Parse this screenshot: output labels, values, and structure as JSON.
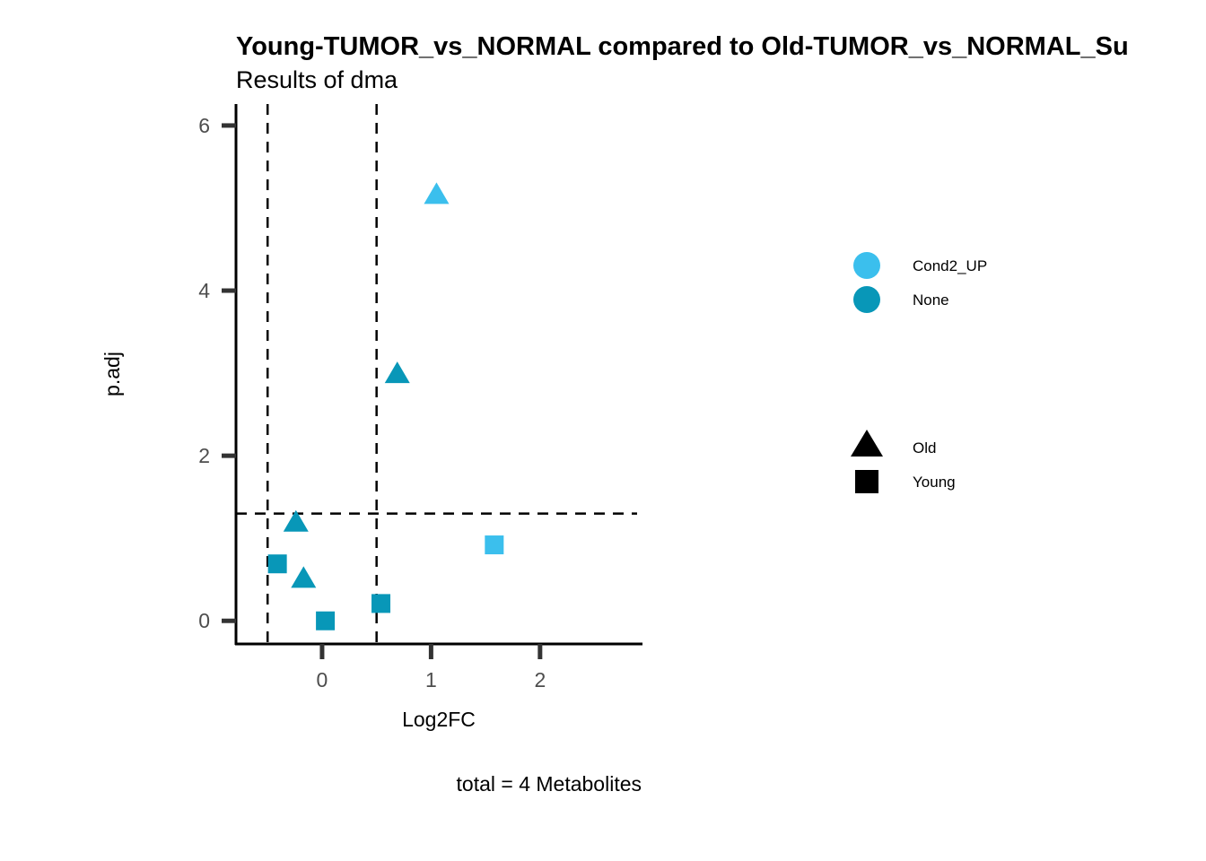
{
  "chart_data": {
    "type": "scatter",
    "title": "Young-TUMOR_vs_NORMAL compared to Old-TUMOR_vs_NORMAL_Su",
    "subtitle": "Results of dma",
    "xlabel": "Log2FC",
    "ylabel": "p.adj",
    "caption": "total = 4 Metabolites",
    "xlim": [
      -0.79,
      2.94
    ],
    "ylim": [
      -0.28,
      6.26
    ],
    "x_ticks": [
      0,
      1,
      2
    ],
    "x_tick_labels": [
      "0",
      "1",
      "2"
    ],
    "y_ticks": [
      0,
      2,
      4,
      6
    ],
    "y_tick_labels": [
      "0",
      "2",
      "4",
      "6"
    ],
    "grid": false,
    "reference_lines": {
      "vertical": [
        -0.5,
        0.5
      ],
      "horizontal": [
        1.3
      ]
    },
    "legend_position": "right",
    "color_legend": [
      {
        "label": "Cond2_UP",
        "color": "#3BBFED"
      },
      {
        "label": "None",
        "color": "#0897B8"
      }
    ],
    "shape_legend": [
      {
        "label": "Old",
        "shape": "triangle"
      },
      {
        "label": "Young",
        "shape": "square"
      }
    ],
    "points": [
      {
        "x": 1.05,
        "y": 5.17,
        "group": "Cond2_UP",
        "shape": "Old"
      },
      {
        "x": 0.69,
        "y": 3.0,
        "group": "None",
        "shape": "Old"
      },
      {
        "x": -0.24,
        "y": 1.2,
        "group": "None",
        "shape": "Old"
      },
      {
        "x": -0.17,
        "y": 0.52,
        "group": "None",
        "shape": "Old"
      },
      {
        "x": -0.41,
        "y": 0.69,
        "group": "None",
        "shape": "Young"
      },
      {
        "x": 0.03,
        "y": 0.0,
        "group": "None",
        "shape": "Young"
      },
      {
        "x": 0.54,
        "y": 0.21,
        "group": "None",
        "shape": "Young"
      },
      {
        "x": 1.58,
        "y": 0.92,
        "group": "Cond2_UP",
        "shape": "Young"
      }
    ]
  }
}
